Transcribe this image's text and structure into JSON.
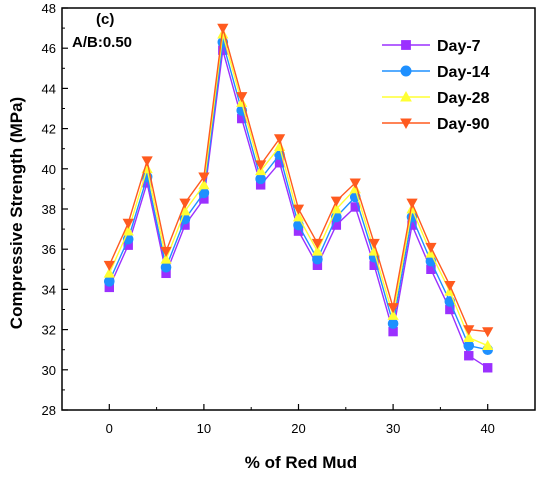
{
  "panel": {
    "label": "(c)",
    "subtitle": "A/B:0.50"
  },
  "chart_data": {
    "type": "line",
    "xlabel": "% of Red Mud",
    "ylabel": "Compressive Strength (MPa)",
    "xlim": [
      -5,
      45
    ],
    "ylim": [
      28,
      48
    ],
    "xticks": [
      0,
      10,
      20,
      30,
      40
    ],
    "yticks": [
      28,
      30,
      32,
      34,
      36,
      38,
      40,
      42,
      44,
      46,
      48
    ],
    "grid": false,
    "legend_position": "top-right",
    "x": [
      0,
      2,
      4,
      6,
      8,
      10,
      12,
      14,
      16,
      18,
      20,
      22,
      24,
      26,
      28,
      30,
      32,
      34,
      36,
      38,
      40
    ],
    "series": [
      {
        "name": "Day-7",
        "marker": "square",
        "color": "#9b30ff",
        "values": [
          34.1,
          36.2,
          39.3,
          34.8,
          37.2,
          38.5,
          45.9,
          42.5,
          39.2,
          40.3,
          36.9,
          35.2,
          37.2,
          38.1,
          35.2,
          31.9,
          37.2,
          35.0,
          33.0,
          30.7,
          30.1
        ]
      },
      {
        "name": "Day-14",
        "marker": "circle",
        "color": "#1e90ff",
        "values": [
          34.4,
          36.5,
          39.6,
          35.1,
          37.5,
          38.8,
          46.3,
          42.9,
          39.5,
          40.7,
          37.2,
          35.5,
          37.6,
          38.6,
          35.6,
          32.3,
          37.6,
          35.4,
          33.4,
          31.2,
          31.0
        ]
      },
      {
        "name": "Day-28",
        "marker": "triangle-up",
        "color": "#ffff33",
        "values": [
          34.8,
          36.9,
          40.0,
          35.5,
          37.9,
          39.2,
          46.7,
          43.3,
          39.9,
          41.1,
          37.6,
          35.9,
          38.0,
          39.0,
          35.9,
          32.7,
          38.0,
          35.8,
          33.9,
          31.6,
          31.2
        ]
      },
      {
        "name": "Day-90",
        "marker": "triangle-down",
        "color": "#ff5a1f",
        "values": [
          35.2,
          37.3,
          40.4,
          35.9,
          38.3,
          39.6,
          47.0,
          43.6,
          40.2,
          41.5,
          38.0,
          36.3,
          38.4,
          39.3,
          36.3,
          33.1,
          38.3,
          36.1,
          34.2,
          32.0,
          31.9
        ]
      }
    ]
  }
}
